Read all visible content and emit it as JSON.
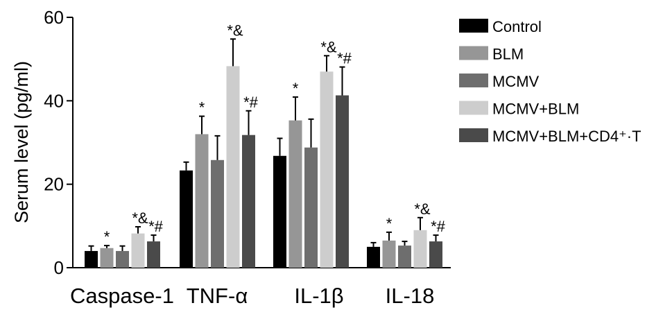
{
  "chart_data": {
    "type": "bar",
    "ylabel": "Serum level (pg/ml)",
    "ylim": [
      0,
      60
    ],
    "yticks": [
      "0",
      "20",
      "40",
      "60"
    ],
    "categories": [
      "Caspase-1",
      "TNF-α",
      "IL-1β",
      "IL-18"
    ],
    "legend_position": "right",
    "grid": false,
    "series": [
      {
        "name": "Control",
        "color": "#000000",
        "values": [
          4.0,
          23.3,
          26.8,
          5.0
        ],
        "errors": [
          1.2,
          2.0,
          4.2,
          1.0
        ],
        "marks": [
          "",
          "",
          "",
          ""
        ]
      },
      {
        "name": "BLM",
        "color": "#969696",
        "values": [
          4.7,
          32.0,
          35.3,
          6.5
        ],
        "errors": [
          0.6,
          4.3,
          5.6,
          2.0
        ],
        "marks": [
          "*",
          "*",
          "*",
          "*"
        ]
      },
      {
        "name": "MCMV",
        "color": "#6e6e6e",
        "values": [
          4.0,
          25.8,
          28.8,
          5.3
        ],
        "errors": [
          1.2,
          5.8,
          6.8,
          1.0
        ],
        "marks": [
          "",
          "",
          "",
          ""
        ]
      },
      {
        "name": "MCMV+BLM",
        "color": "#cdcdcd",
        "values": [
          8.2,
          48.3,
          47.0,
          9.0
        ],
        "errors": [
          1.6,
          6.5,
          3.8,
          3.0
        ],
        "marks": [
          "*&",
          "*&",
          "*&",
          "*&"
        ]
      },
      {
        "name": "MCMV+BLM+CD4⁺·T",
        "color": "#4a4a4a",
        "values": [
          6.3,
          31.8,
          41.3,
          6.3
        ],
        "errors": [
          1.5,
          5.8,
          6.8,
          1.5
        ],
        "marks": [
          "*#",
          "*#",
          "*#",
          "*#"
        ]
      }
    ]
  }
}
